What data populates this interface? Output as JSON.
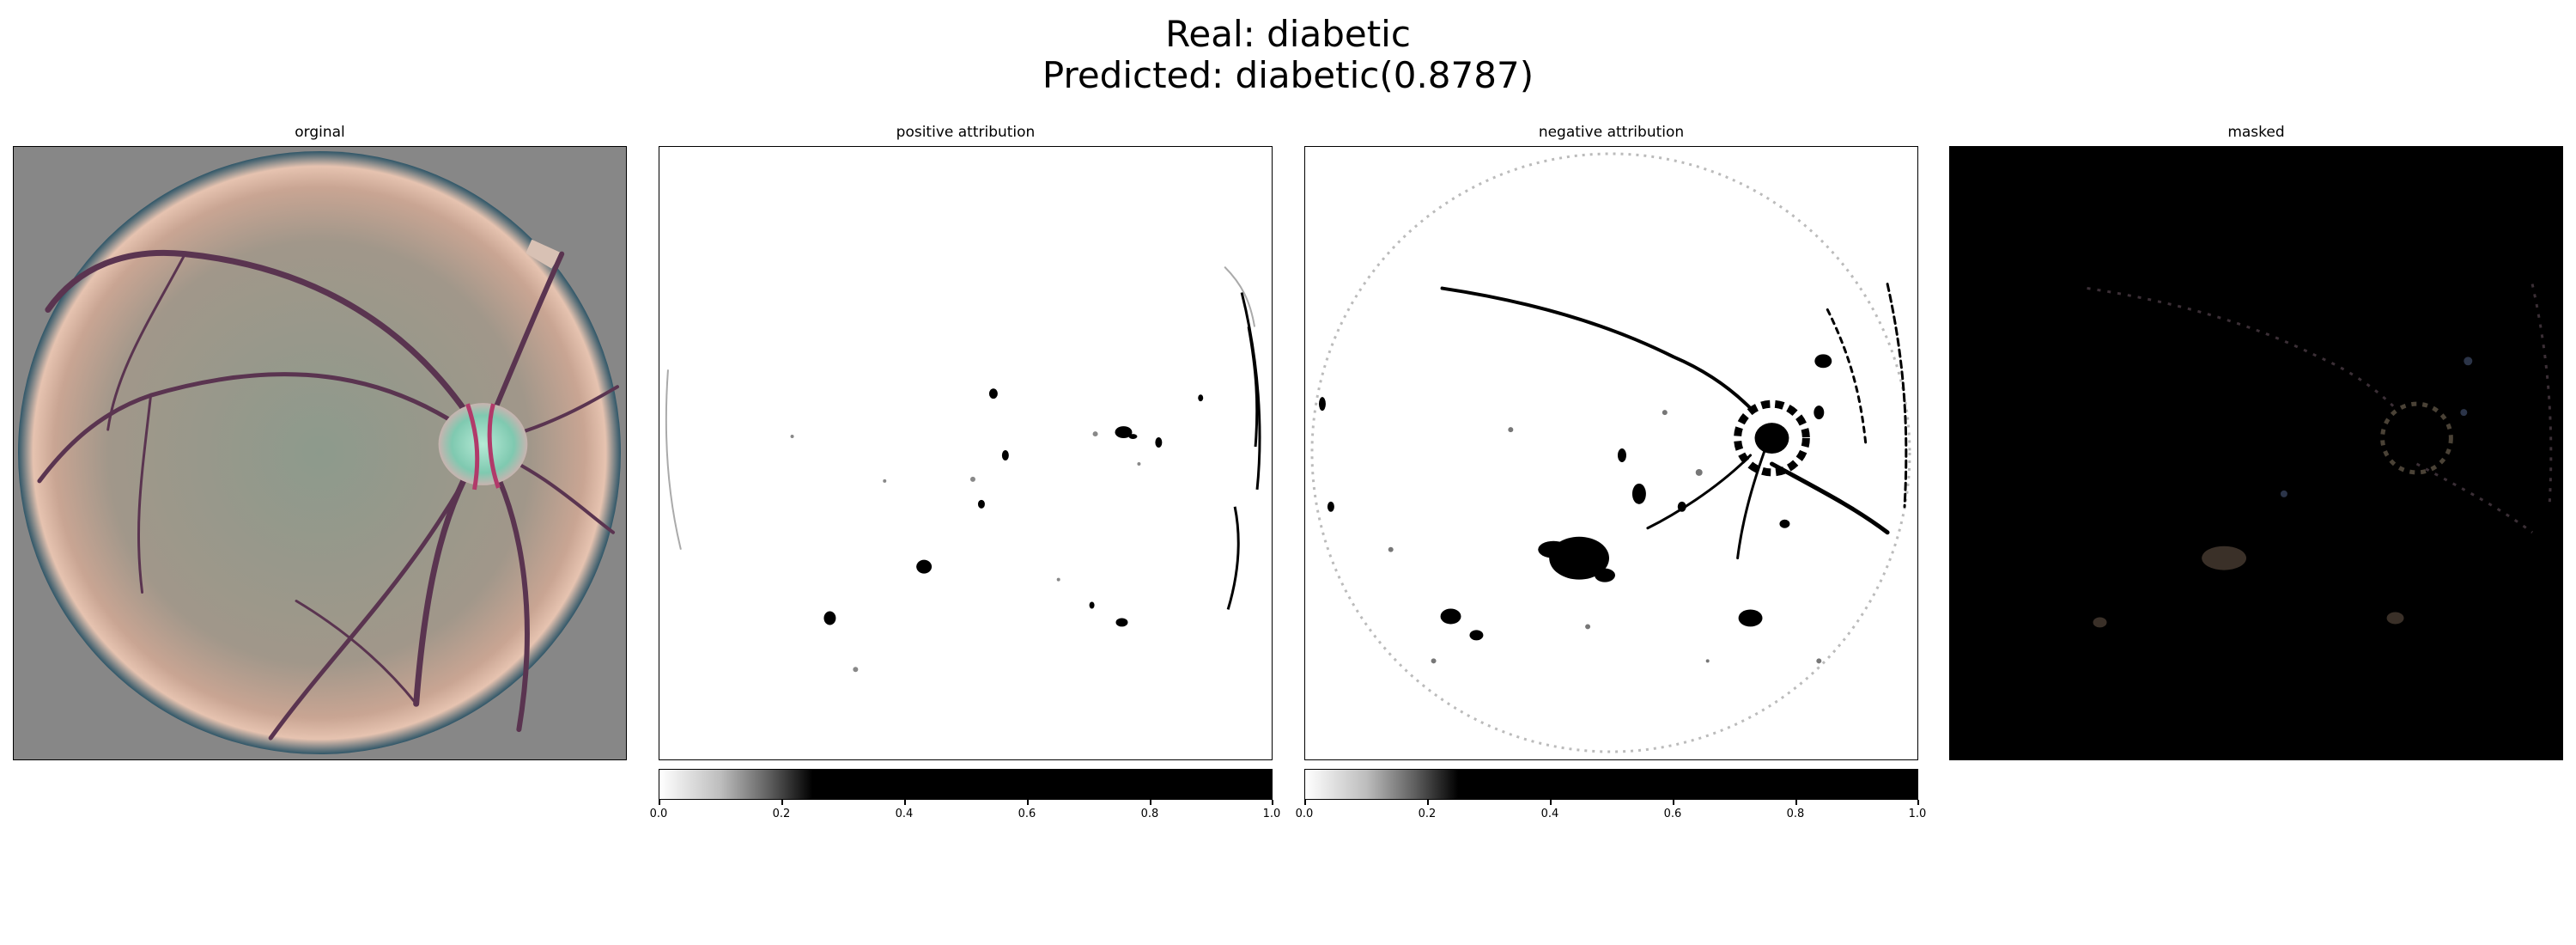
{
  "figure": {
    "title_line1": "Real: diabetic",
    "title_line2": "Predicted: diabetic(0.8787)"
  },
  "panels": [
    {
      "title": "orginal"
    },
    {
      "title": "positive attribution"
    },
    {
      "title": "negative attribution"
    },
    {
      "title": "masked"
    }
  ],
  "colorbars": [
    {
      "ticks": [
        "0.0",
        "0.2",
        "0.4",
        "0.6",
        "0.8",
        "1.0"
      ]
    },
    {
      "ticks": [
        "0.0",
        "0.2",
        "0.4",
        "0.6",
        "0.8",
        "1.0"
      ]
    }
  ],
  "colors": {
    "background_gray": "#878787",
    "retina_base": "#9a9286",
    "vessel": "#5a3450",
    "disc_cyan": "#9fe0cc",
    "masked_bg": "#000000"
  }
}
